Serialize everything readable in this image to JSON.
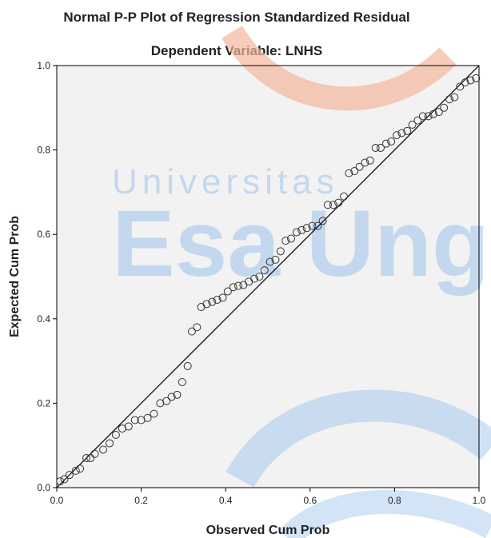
{
  "chart_data": {
    "type": "scatter",
    "title": "Normal P-P Plot of Regression Standardized Residual",
    "subtitle": "Dependent Variable: LNHS",
    "xlabel": "Observed Cum Prob",
    "ylabel": "Expected Cum Prob",
    "xlim": [
      0,
      1
    ],
    "ylim": [
      0,
      1
    ],
    "xticks": [
      "0.0",
      "0.2",
      "0.4",
      "0.6",
      "0.8",
      "1.0"
    ],
    "yticks": [
      "0.0",
      "0.2",
      "0.4",
      "0.6",
      "0.8",
      "1.0"
    ],
    "reference_line": [
      [
        0,
        0
      ],
      [
        1,
        1
      ]
    ],
    "points": [
      [
        0.008,
        0.015
      ],
      [
        0.018,
        0.02
      ],
      [
        0.03,
        0.03
      ],
      [
        0.045,
        0.04
      ],
      [
        0.055,
        0.045
      ],
      [
        0.07,
        0.07
      ],
      [
        0.08,
        0.07
      ],
      [
        0.09,
        0.08
      ],
      [
        0.11,
        0.09
      ],
      [
        0.125,
        0.105
      ],
      [
        0.14,
        0.125
      ],
      [
        0.155,
        0.14
      ],
      [
        0.17,
        0.145
      ],
      [
        0.185,
        0.16
      ],
      [
        0.2,
        0.16
      ],
      [
        0.215,
        0.165
      ],
      [
        0.23,
        0.175
      ],
      [
        0.245,
        0.2
      ],
      [
        0.26,
        0.205
      ],
      [
        0.272,
        0.215
      ],
      [
        0.285,
        0.22
      ],
      [
        0.297,
        0.25
      ],
      [
        0.31,
        0.288
      ],
      [
        0.32,
        0.37
      ],
      [
        0.332,
        0.38
      ],
      [
        0.342,
        0.428
      ],
      [
        0.355,
        0.435
      ],
      [
        0.368,
        0.44
      ],
      [
        0.38,
        0.445
      ],
      [
        0.393,
        0.45
      ],
      [
        0.405,
        0.465
      ],
      [
        0.418,
        0.475
      ],
      [
        0.43,
        0.478
      ],
      [
        0.442,
        0.48
      ],
      [
        0.455,
        0.488
      ],
      [
        0.468,
        0.495
      ],
      [
        0.48,
        0.5
      ],
      [
        0.492,
        0.515
      ],
      [
        0.505,
        0.535
      ],
      [
        0.518,
        0.54
      ],
      [
        0.53,
        0.56
      ],
      [
        0.542,
        0.585
      ],
      [
        0.555,
        0.59
      ],
      [
        0.568,
        0.605
      ],
      [
        0.58,
        0.61
      ],
      [
        0.592,
        0.615
      ],
      [
        0.605,
        0.62
      ],
      [
        0.618,
        0.62
      ],
      [
        0.63,
        0.632
      ],
      [
        0.642,
        0.67
      ],
      [
        0.655,
        0.67
      ],
      [
        0.667,
        0.675
      ],
      [
        0.68,
        0.69
      ],
      [
        0.692,
        0.745
      ],
      [
        0.705,
        0.75
      ],
      [
        0.717,
        0.76
      ],
      [
        0.73,
        0.77
      ],
      [
        0.742,
        0.775
      ],
      [
        0.755,
        0.805
      ],
      [
        0.767,
        0.805
      ],
      [
        0.78,
        0.815
      ],
      [
        0.792,
        0.82
      ],
      [
        0.805,
        0.835
      ],
      [
        0.817,
        0.84
      ],
      [
        0.83,
        0.845
      ],
      [
        0.842,
        0.86
      ],
      [
        0.855,
        0.87
      ],
      [
        0.867,
        0.88
      ],
      [
        0.88,
        0.88
      ],
      [
        0.892,
        0.885
      ],
      [
        0.905,
        0.89
      ],
      [
        0.917,
        0.9
      ],
      [
        0.93,
        0.92
      ],
      [
        0.942,
        0.925
      ],
      [
        0.955,
        0.95
      ],
      [
        0.967,
        0.96
      ],
      [
        0.98,
        0.965
      ],
      [
        0.993,
        0.97
      ]
    ],
    "grid": false,
    "legend": "none",
    "colors": {
      "plot_background": "#f2f2f2",
      "axis": "#000000",
      "marker_stroke": "#333333",
      "reference_line": "#000000"
    }
  },
  "watermark": {
    "line1": "Universitas",
    "line2": "Esa Unggul",
    "color_blue": "#9ec3ec",
    "color_orange": "#f3b79c"
  }
}
